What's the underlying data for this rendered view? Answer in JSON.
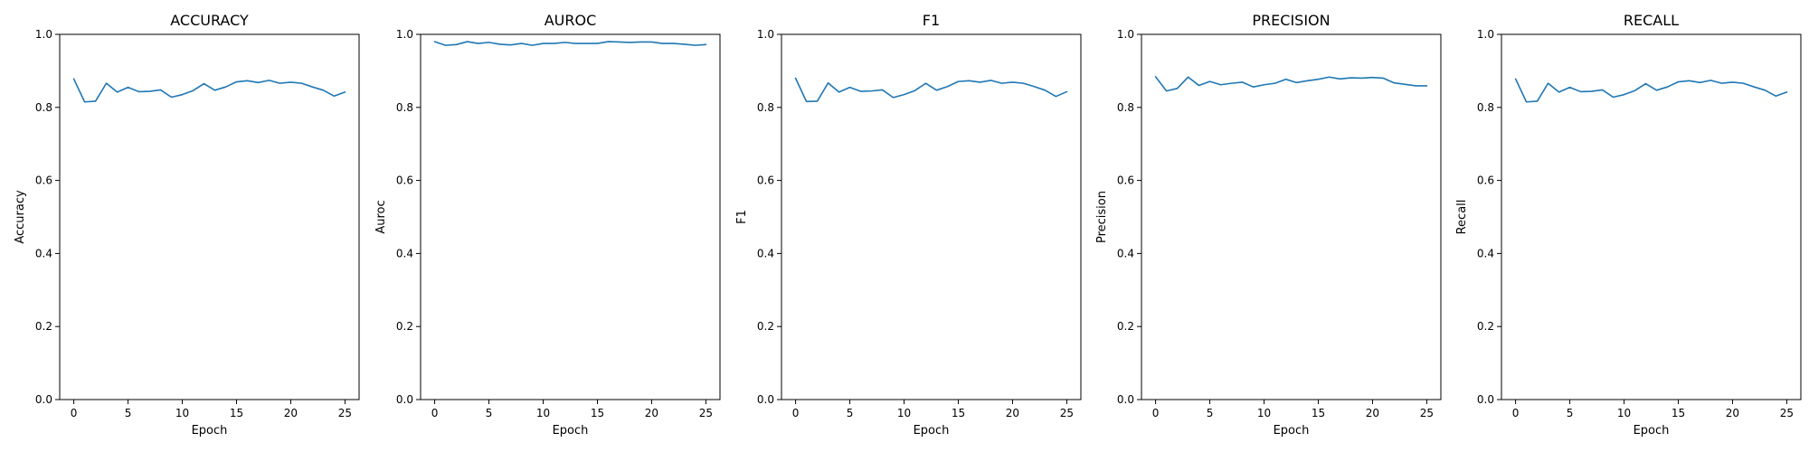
{
  "figure": {
    "line_color": "#1f77b4"
  },
  "chart_data": [
    {
      "type": "line",
      "title": "ACCURACY",
      "xlabel": "Epoch",
      "ylabel": "Accuracy",
      "xlim": [
        -1.3,
        26.3
      ],
      "ylim": [
        0,
        1
      ],
      "xticks": [
        0,
        5,
        10,
        15,
        20,
        25
      ],
      "xtick_labels": [
        "0",
        "5",
        "10",
        "15",
        "20",
        "25"
      ],
      "yticks": [
        0,
        0.2,
        0.4,
        0.6,
        0.8,
        1.0
      ],
      "ytick_labels": [
        "0.0",
        "0.2",
        "0.4",
        "0.6",
        "0.8",
        "1.0"
      ],
      "grid": false,
      "x": [
        0,
        1,
        2,
        3,
        4,
        5,
        6,
        7,
        8,
        9,
        10,
        11,
        12,
        13,
        14,
        15,
        16,
        17,
        18,
        19,
        20,
        21,
        22,
        23,
        24,
        25
      ],
      "series": [
        {
          "values": [
            0.878,
            0.815,
            0.817,
            0.866,
            0.842,
            0.855,
            0.843,
            0.844,
            0.848,
            0.828,
            0.835,
            0.846,
            0.865,
            0.847,
            0.856,
            0.87,
            0.873,
            0.868,
            0.874,
            0.866,
            0.869,
            0.866,
            0.856,
            0.847,
            0.831,
            0.842
          ]
        }
      ]
    },
    {
      "type": "line",
      "title": "AUROC",
      "xlabel": "Epoch",
      "ylabel": "Auroc",
      "xlim": [
        -1.3,
        26.3
      ],
      "ylim": [
        0,
        1
      ],
      "xticks": [
        0,
        5,
        10,
        15,
        20,
        25
      ],
      "xtick_labels": [
        "0",
        "5",
        "10",
        "15",
        "20",
        "25"
      ],
      "yticks": [
        0,
        0.2,
        0.4,
        0.6,
        0.8,
        1.0
      ],
      "ytick_labels": [
        "0.0",
        "0.2",
        "0.4",
        "0.6",
        "0.8",
        "1.0"
      ],
      "grid": false,
      "x": [
        0,
        1,
        2,
        3,
        4,
        5,
        6,
        7,
        8,
        9,
        10,
        11,
        12,
        13,
        14,
        15,
        16,
        17,
        18,
        19,
        20,
        21,
        22,
        23,
        24,
        25
      ],
      "series": [
        {
          "values": [
            0.98,
            0.97,
            0.972,
            0.98,
            0.975,
            0.978,
            0.973,
            0.971,
            0.975,
            0.97,
            0.975,
            0.975,
            0.978,
            0.975,
            0.975,
            0.975,
            0.98,
            0.979,
            0.978,
            0.979,
            0.979,
            0.975,
            0.975,
            0.973,
            0.97,
            0.972
          ]
        }
      ]
    },
    {
      "type": "line",
      "title": "F1",
      "xlabel": "Epoch",
      "ylabel": "F1",
      "xlim": [
        -1.3,
        26.3
      ],
      "ylim": [
        0,
        1
      ],
      "xticks": [
        0,
        5,
        10,
        15,
        20,
        25
      ],
      "xtick_labels": [
        "0",
        "5",
        "10",
        "15",
        "20",
        "25"
      ],
      "yticks": [
        0,
        0.2,
        0.4,
        0.6,
        0.8,
        1.0
      ],
      "ytick_labels": [
        "0.0",
        "0.2",
        "0.4",
        "0.6",
        "0.8",
        "1.0"
      ],
      "grid": false,
      "x": [
        0,
        1,
        2,
        3,
        4,
        5,
        6,
        7,
        8,
        9,
        10,
        11,
        12,
        13,
        14,
        15,
        16,
        17,
        18,
        19,
        20,
        21,
        22,
        23,
        24,
        25
      ],
      "series": [
        {
          "values": [
            0.88,
            0.816,
            0.817,
            0.867,
            0.842,
            0.855,
            0.844,
            0.845,
            0.848,
            0.827,
            0.835,
            0.846,
            0.866,
            0.847,
            0.857,
            0.871,
            0.873,
            0.869,
            0.874,
            0.866,
            0.869,
            0.866,
            0.857,
            0.847,
            0.83,
            0.843
          ]
        }
      ]
    },
    {
      "type": "line",
      "title": "PRECISION",
      "xlabel": "Epoch",
      "ylabel": "Precision",
      "xlim": [
        -1.3,
        26.3
      ],
      "ylim": [
        0,
        1
      ],
      "xticks": [
        0,
        5,
        10,
        15,
        20,
        25
      ],
      "xtick_labels": [
        "0",
        "5",
        "10",
        "15",
        "20",
        "25"
      ],
      "yticks": [
        0,
        0.2,
        0.4,
        0.6,
        0.8,
        1.0
      ],
      "ytick_labels": [
        "0.0",
        "0.2",
        "0.4",
        "0.6",
        "0.8",
        "1.0"
      ],
      "grid": false,
      "x": [
        0,
        1,
        2,
        3,
        4,
        5,
        6,
        7,
        8,
        9,
        10,
        11,
        12,
        13,
        14,
        15,
        16,
        17,
        18,
        19,
        20,
        21,
        22,
        23,
        24,
        25
      ],
      "series": [
        {
          "values": [
            0.884,
            0.845,
            0.852,
            0.883,
            0.86,
            0.871,
            0.862,
            0.866,
            0.869,
            0.856,
            0.862,
            0.866,
            0.877,
            0.868,
            0.873,
            0.877,
            0.883,
            0.878,
            0.881,
            0.88,
            0.882,
            0.88,
            0.867,
            0.863,
            0.859,
            0.859
          ]
        }
      ]
    },
    {
      "type": "line",
      "title": "RECALL",
      "xlabel": "Epoch",
      "ylabel": "Recall",
      "xlim": [
        -1.3,
        26.3
      ],
      "ylim": [
        0,
        1
      ],
      "xticks": [
        0,
        5,
        10,
        15,
        20,
        25
      ],
      "xtick_labels": [
        "0",
        "5",
        "10",
        "15",
        "20",
        "25"
      ],
      "yticks": [
        0,
        0.2,
        0.4,
        0.6,
        0.8,
        1.0
      ],
      "ytick_labels": [
        "0.0",
        "0.2",
        "0.4",
        "0.6",
        "0.8",
        "1.0"
      ],
      "grid": false,
      "x": [
        0,
        1,
        2,
        3,
        4,
        5,
        6,
        7,
        8,
        9,
        10,
        11,
        12,
        13,
        14,
        15,
        16,
        17,
        18,
        19,
        20,
        21,
        22,
        23,
        24,
        25
      ],
      "series": [
        {
          "values": [
            0.878,
            0.815,
            0.817,
            0.866,
            0.842,
            0.855,
            0.843,
            0.844,
            0.848,
            0.828,
            0.835,
            0.846,
            0.865,
            0.847,
            0.856,
            0.87,
            0.873,
            0.868,
            0.874,
            0.866,
            0.869,
            0.866,
            0.856,
            0.847,
            0.831,
            0.842
          ]
        }
      ]
    }
  ]
}
